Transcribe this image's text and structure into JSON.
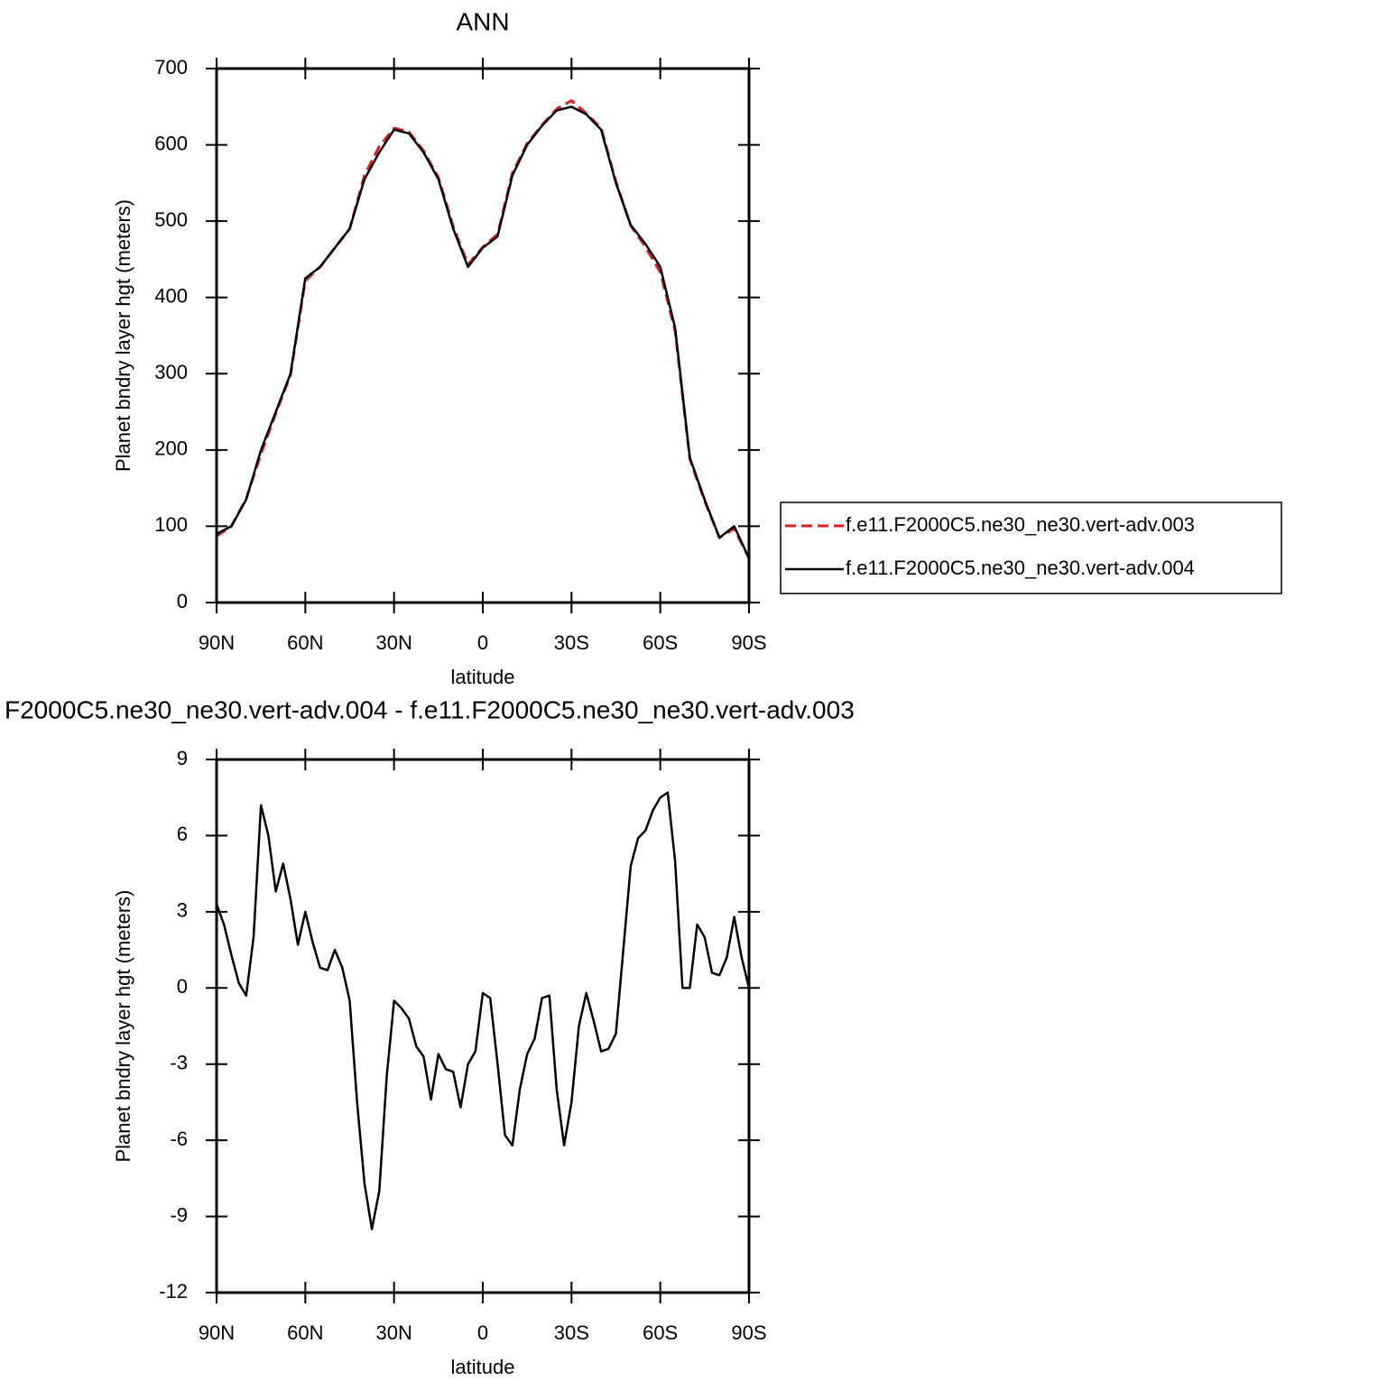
{
  "chart_data": [
    {
      "type": "line",
      "title": "ANN",
      "xlabel": "latitude",
      "ylabel": "Planet bndry layer hgt (meters)",
      "x": [
        90,
        85,
        80,
        75,
        70,
        65,
        60,
        55,
        50,
        45,
        40,
        35,
        30,
        25,
        20,
        15,
        10,
        5,
        0,
        -5,
        -10,
        -15,
        -20,
        -25,
        -30,
        -35,
        -40,
        -45,
        -50,
        -55,
        -60,
        -65,
        -70,
        -75,
        -80,
        -85,
        -90
      ],
      "series": [
        {
          "name": "f.e11.F2000C5.ne30_ne30.vert-adv.003",
          "color": "#e41a1c",
          "dash": true,
          "values": [
            87,
            100,
            136,
            195,
            248,
            298,
            422,
            440,
            465,
            490,
            560,
            598,
            622,
            617,
            592,
            557,
            493,
            443,
            466,
            483,
            563,
            602,
            626,
            647,
            658,
            641,
            622,
            552,
            494,
            466,
            433,
            356,
            188,
            133,
            85,
            97,
            58
          ]
        },
        {
          "name": "f.e11.F2000C5.ne30_ne30.vert-adv.004",
          "color": "#000000",
          "dash": false,
          "values": [
            90,
            100,
            135,
            200,
            250,
            300,
            425,
            440,
            465,
            490,
            555,
            590,
            620,
            615,
            590,
            555,
            490,
            440,
            465,
            480,
            560,
            600,
            625,
            645,
            650,
            640,
            620,
            550,
            495,
            470,
            440,
            360,
            190,
            135,
            85,
            100,
            58
          ]
        }
      ],
      "xlim": [
        90,
        -90
      ],
      "xticks": [
        {
          "value": 90,
          "label": "90N"
        },
        {
          "value": 60,
          "label": "60N"
        },
        {
          "value": 30,
          "label": "30N"
        },
        0,
        {
          "value": -30,
          "label": "30S"
        },
        {
          "value": -60,
          "label": "60S"
        },
        {
          "value": -90,
          "label": "90S"
        }
      ],
      "ylim": [
        0,
        700
      ],
      "yticks": [
        0,
        100,
        200,
        300,
        400,
        500,
        600,
        700
      ]
    },
    {
      "type": "line",
      "title": "F2000C5.ne30_ne30.vert-adv.004 - f.e11.F2000C5.ne30_ne30.vert-adv.003",
      "xlabel": "latitude",
      "ylabel": "Planet bndry layer hgt (meters)",
      "x": [
        90,
        87.5,
        85,
        82.5,
        80,
        77.5,
        75,
        72.5,
        70,
        67.5,
        65,
        62.5,
        60,
        57.5,
        55,
        52.5,
        50,
        47.5,
        45,
        42.5,
        40,
        37.5,
        35,
        32.5,
        30,
        27.5,
        25,
        22.5,
        20,
        17.5,
        15,
        12.5,
        10,
        7.5,
        5,
        2.5,
        0,
        -2.5,
        -5,
        -7.5,
        -10,
        -12.5,
        -15,
        -17.5,
        -20,
        -22.5,
        -25,
        -27.5,
        -30,
        -32.5,
        -35,
        -37.5,
        -40,
        -42.5,
        -45,
        -47.5,
        -50,
        -52.5,
        -55,
        -57.5,
        -60,
        -62.5,
        -65,
        -67.5,
        -70,
        -72.5,
        -75,
        -77.5,
        -80,
        -82.5,
        -85,
        -87.5,
        -90
      ],
      "series": [
        {
          "name": null,
          "color": "#000000",
          "dash": false,
          "values": [
            3.3,
            2.5,
            1.3,
            0.2,
            -0.3,
            2,
            7.2,
            6,
            3.8,
            4.9,
            3.5,
            1.7,
            3,
            1.8,
            0.8,
            0.7,
            1.5,
            0.8,
            -0.5,
            -4.5,
            -7.7,
            -9.5,
            -8,
            -3.5,
            -0.5,
            -0.8,
            -1.2,
            -2.3,
            -2.7,
            -4.4,
            -2.6,
            -3.2,
            -3.3,
            -4.7,
            -3,
            -2.5,
            -0.2,
            -0.4,
            -3,
            -5.8,
            -6.2,
            -4,
            -2.6,
            -2,
            -0.4,
            -0.3,
            -4,
            -6.2,
            -4.5,
            -1.5,
            -0.2,
            -1.3,
            -2.5,
            -2.4,
            -1.8,
            1.5,
            4.8,
            5.9,
            6.2,
            7,
            7.5,
            7.7,
            5,
            0,
            0,
            2.5,
            2,
            0.6,
            0.5,
            1.2,
            2.8,
            1.2,
            0
          ]
        }
      ],
      "xlim": [
        90,
        -90
      ],
      "xticks": [
        {
          "value": 90,
          "label": "90N"
        },
        {
          "value": 60,
          "label": "60N"
        },
        {
          "value": 30,
          "label": "30N"
        },
        0,
        {
          "value": -30,
          "label": "30S"
        },
        {
          "value": -60,
          "label": "60S"
        },
        {
          "value": -90,
          "label": "90S"
        }
      ],
      "ylim": [
        -12,
        9
      ],
      "yticks": [
        -12,
        -9,
        -6,
        -3,
        0,
        3,
        6,
        9
      ]
    }
  ]
}
